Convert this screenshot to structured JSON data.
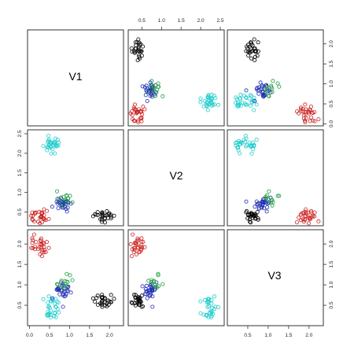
{
  "chart_data": {
    "type": "scatter",
    "variables": [
      "V1",
      "V2",
      "V3"
    ],
    "colors": {
      "black": "#000000",
      "cyan": "#22cccc",
      "red": "#cc2222",
      "blue": "#1f2fb3",
      "green": "#1a9e3a"
    },
    "ticks": {
      "V1": [
        0.0,
        0.5,
        1.0,
        1.5,
        2.0
      ],
      "V2": [
        0.5,
        1.0,
        1.5,
        2.0,
        2.5
      ],
      "V3": [
        0.5,
        1.0,
        1.5,
        2.0
      ]
    },
    "ranges": {
      "V1": [
        -0.05,
        2.35
      ],
      "V2": [
        0.15,
        2.6
      ],
      "V3": [
        0.0,
        2.35
      ]
    },
    "grid": false,
    "clusters": [
      {
        "color": "black",
        "center": [
          1.85,
          0.4,
          0.62
        ],
        "spread": [
          0.13,
          0.08,
          0.09
        ],
        "n": 28
      },
      {
        "color": "cyan",
        "center": [
          0.55,
          2.2,
          0.42
        ],
        "spread": [
          0.12,
          0.1,
          0.14
        ],
        "n": 32
      },
      {
        "color": "red",
        "center": [
          0.25,
          0.38,
          1.95
        ],
        "spread": [
          0.12,
          0.1,
          0.13
        ],
        "n": 30
      },
      {
        "color": "blue",
        "center": [
          0.83,
          0.72,
          0.88
        ],
        "spread": [
          0.12,
          0.1,
          0.12
        ],
        "n": 30
      },
      {
        "color": "green",
        "center": [
          0.9,
          0.85,
          1.05
        ],
        "spread": [
          0.1,
          0.08,
          0.08
        ],
        "n": 12
      }
    ]
  }
}
